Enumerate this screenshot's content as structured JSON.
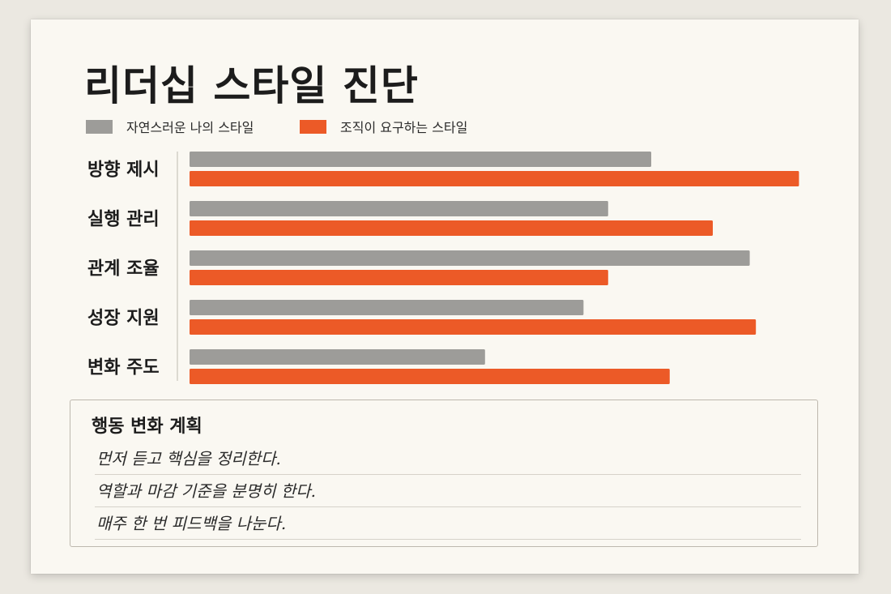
{
  "title": "리더십 스타일 진단",
  "colors": {
    "natural": "#9d9c99",
    "required": "#ec5a27",
    "background": "#faf8f2"
  },
  "legend": [
    {
      "label": "자연스러운 나의 스타일",
      "color": "#9d9c99"
    },
    {
      "label": "조직이 요구하는 스타일",
      "color": "#ec5a27"
    }
  ],
  "chart_data": {
    "type": "bar",
    "orientation": "horizontal",
    "categories": [
      "방향 제시",
      "실행 관리",
      "관계 조율",
      "성장 지원",
      "변화 주도"
    ],
    "series": [
      {
        "name": "자연스러운 나의 스타일",
        "values": [
          75,
          68,
          91,
          64,
          48
        ]
      },
      {
        "name": "조직이 요구하는 스타일",
        "values": [
          99,
          85,
          68,
          92,
          78
        ]
      }
    ],
    "xlim": [
      0,
      100
    ],
    "grid": false,
    "legend_position": "top-left"
  },
  "plan": {
    "title": "행동 변화 계획",
    "lines": [
      "먼저 듣고 핵심을 정리한다.",
      "역할과 마감 기준을 분명히 한다.",
      "매주 한 번 피드백을 나눈다."
    ]
  }
}
